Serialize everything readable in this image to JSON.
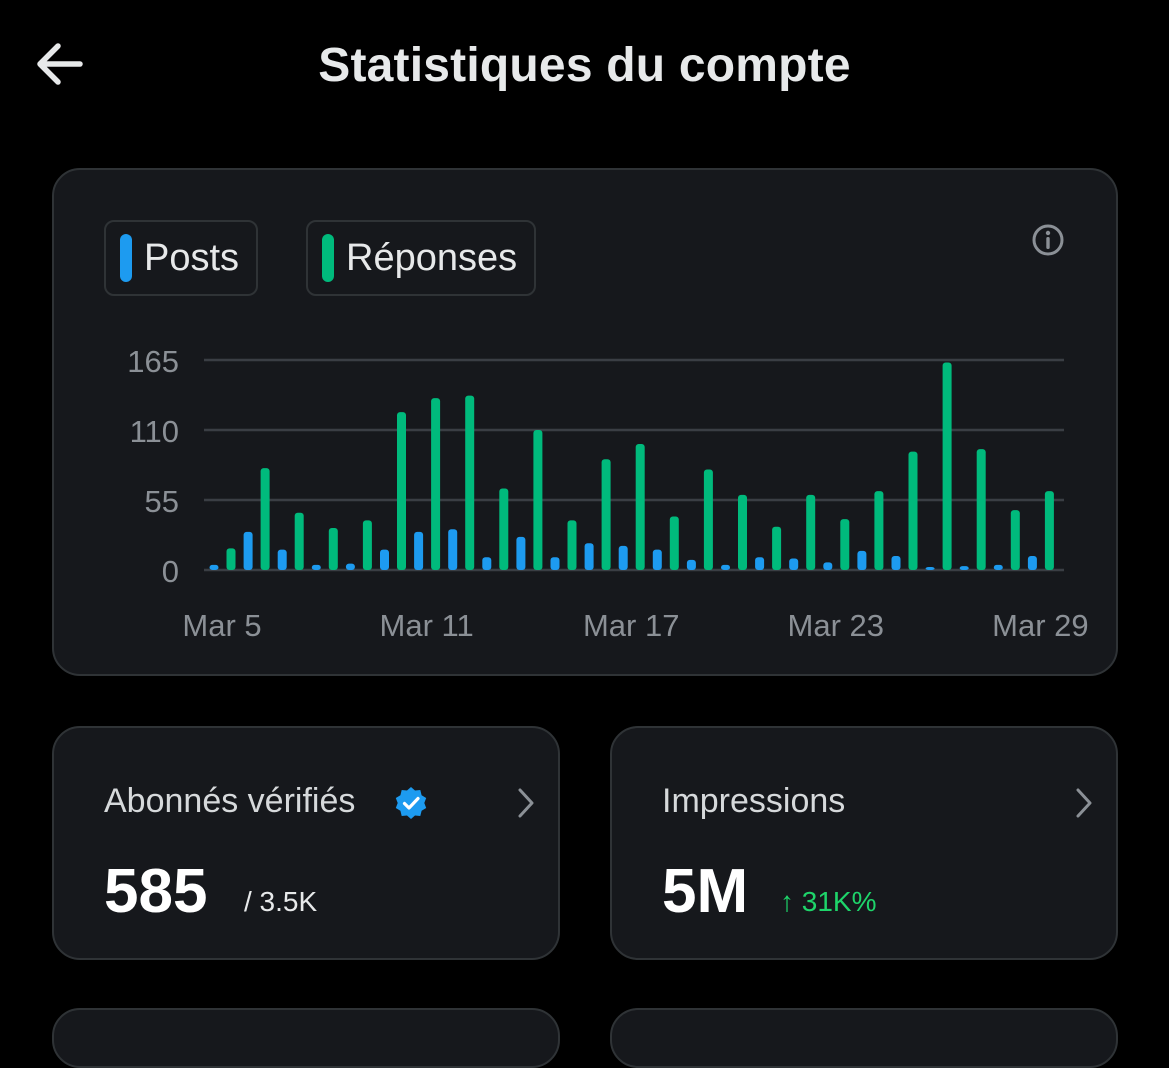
{
  "header": {
    "title": "Statistiques du compte",
    "back_icon": "arrow-left-icon"
  },
  "colors": {
    "posts": "#1d9bf0",
    "replies": "#00ba7c",
    "delta": "#1ed46a",
    "verified": "#1d9bf0"
  },
  "legend": {
    "posts": "Posts",
    "replies": "Réponses"
  },
  "chart_data": {
    "type": "bar",
    "x": [
      "Mar 5",
      "Mar 6",
      "Mar 7",
      "Mar 8",
      "Mar 9",
      "Mar 10",
      "Mar 11",
      "Mar 12",
      "Mar 13",
      "Mar 14",
      "Mar 15",
      "Mar 16",
      "Mar 17",
      "Mar 18",
      "Mar 19",
      "Mar 20",
      "Mar 21",
      "Mar 22",
      "Mar 23",
      "Mar 24",
      "Mar 25",
      "Mar 26",
      "Mar 27",
      "Mar 28",
      "Mar 29"
    ],
    "x_tick_labels": [
      "Mar 5",
      "Mar 11",
      "Mar 17",
      "Mar 23",
      "Mar 29"
    ],
    "y_ticks": [
      "0",
      "55",
      "110",
      "165"
    ],
    "ylim": [
      0,
      165
    ],
    "grid": true,
    "series": [
      {
        "name": "Posts",
        "values": [
          4,
          30,
          16,
          4,
          5,
          16,
          30,
          32,
          10,
          26,
          10,
          21,
          19,
          16,
          8,
          4,
          10,
          9,
          6,
          15,
          11,
          1,
          3,
          4,
          11
        ]
      },
      {
        "name": "Réponses",
        "values": [
          17,
          80,
          45,
          33,
          39,
          124,
          135,
          137,
          64,
          110,
          39,
          87,
          99,
          42,
          79,
          59,
          34,
          59,
          40,
          62,
          93,
          163,
          95,
          47,
          62
        ]
      }
    ]
  },
  "stats": [
    {
      "label": "Abonnés vérifiés",
      "value": "585",
      "sub": "/ 3.5K",
      "icon": "verified-badge-icon"
    },
    {
      "label": "Impressions",
      "value": "5M",
      "delta": "↑ 31K%"
    }
  ]
}
